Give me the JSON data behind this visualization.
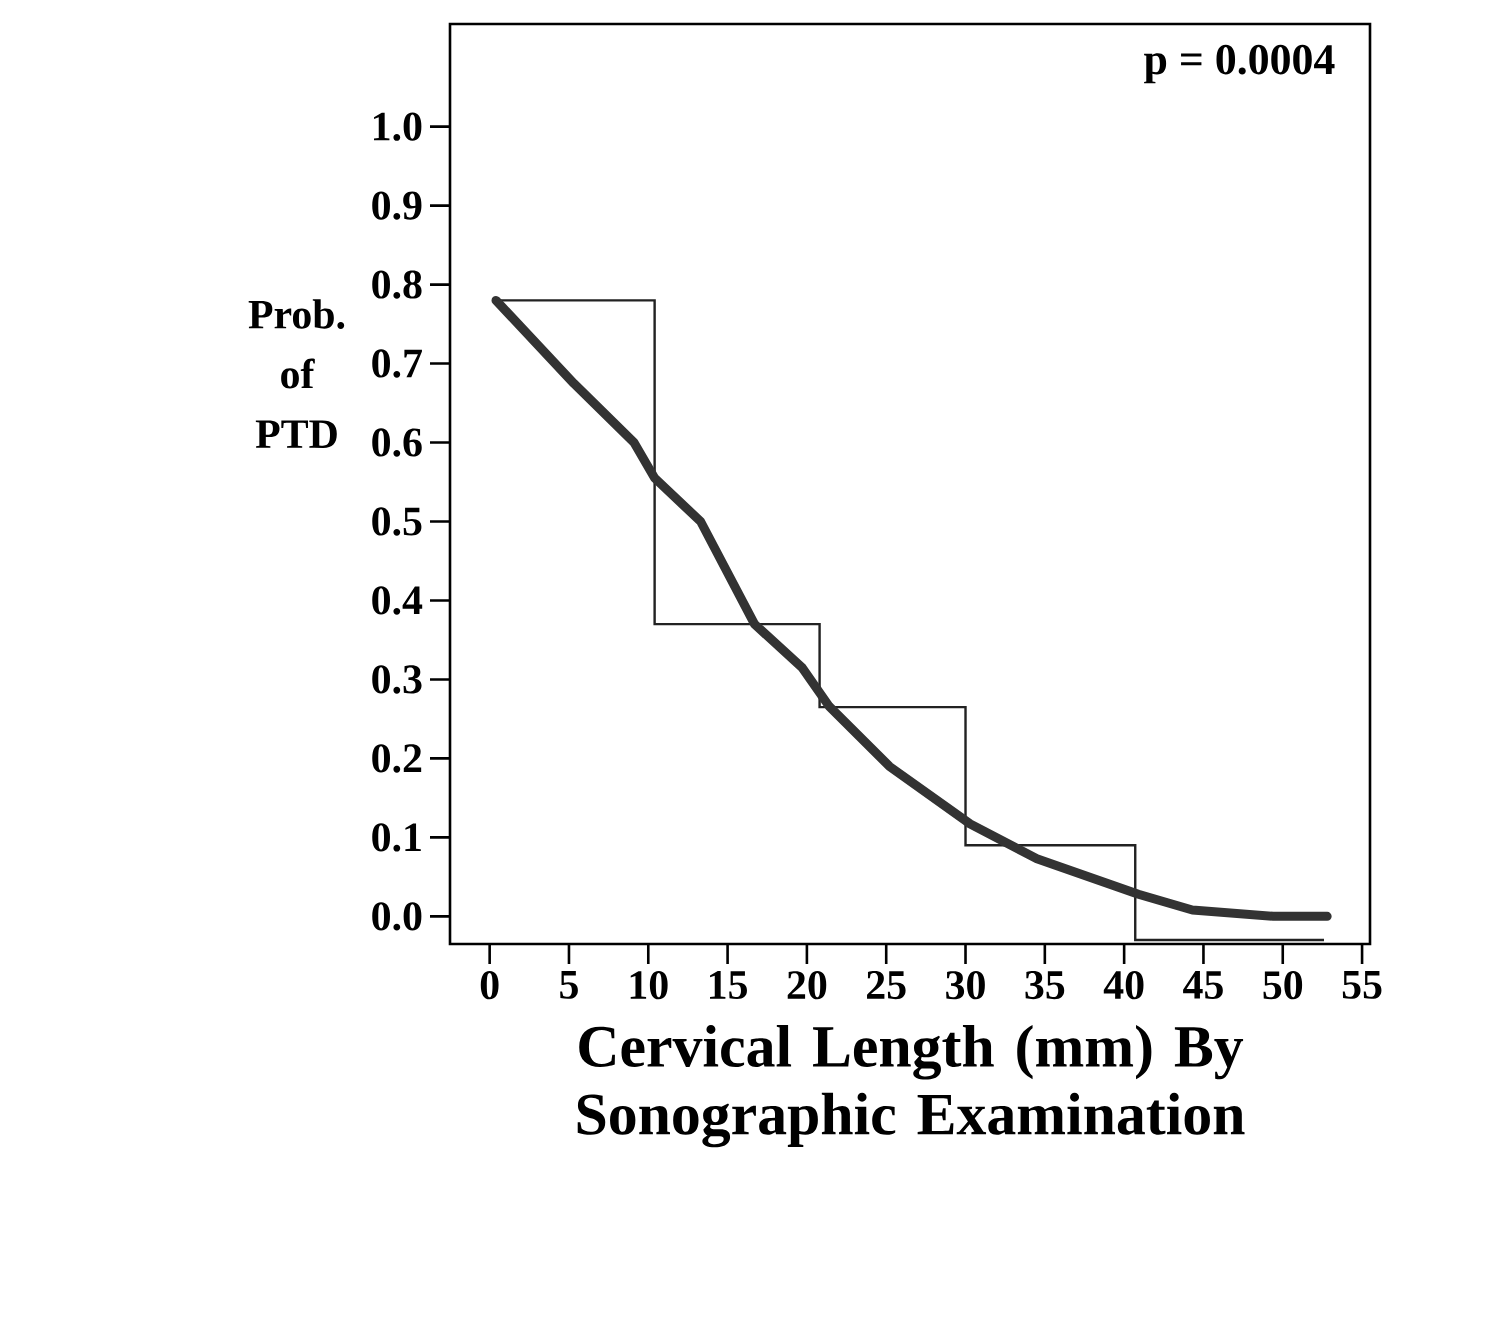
{
  "chart_data": {
    "type": "line",
    "xlabel": "Cervical Length (mm) By Sonographic Examination",
    "ylabel": "Prob. of PTD",
    "annotations": [
      "p = 0.0004"
    ],
    "xlim": [
      -2.5,
      55.5
    ],
    "ylim": [
      -0.035,
      1.13
    ],
    "xticks": [
      0,
      5,
      10,
      15,
      20,
      25,
      30,
      35,
      40,
      45,
      50,
      55
    ],
    "yticks": [
      {
        "value": 0,
        "label": "0.0"
      },
      0.1,
      0.2,
      0.3,
      0.4,
      0.5,
      0.6,
      0.7,
      0.8,
      0.9,
      {
        "value": 1,
        "label": "1.0"
      }
    ],
    "series": [
      {
        "type": "step",
        "color": "#222222",
        "x": [
          0.4,
          10.4,
          20.8,
          30,
          40.7,
          52.6
        ],
        "values": [
          0.78,
          0.37,
          0.265,
          0.09,
          -0.03,
          -0.03
        ]
      },
      {
        "color": "#333333",
        "x": [
          0.4,
          5.3,
          9.1,
          10.4,
          13.3,
          16.7,
          19.7,
          21.4,
          25.2,
          30.3,
          34.5,
          40.9,
          44.3,
          49.4,
          52.8
        ],
        "values": [
          0.78,
          0.675,
          0.6,
          0.555,
          0.5,
          0.37,
          0.315,
          0.266,
          0.19,
          0.117,
          0.073,
          0.028,
          0.008,
          0.0,
          0.0
        ]
      }
    ],
    "grid": false
  }
}
